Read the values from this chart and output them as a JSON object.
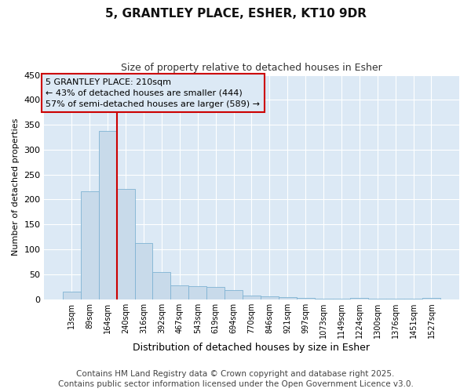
{
  "title": "5, GRANTLEY PLACE, ESHER, KT10 9DR",
  "subtitle": "Size of property relative to detached houses in Esher",
  "xlabel": "Distribution of detached houses by size in Esher",
  "ylabel": "Number of detached properties",
  "bar_color": "#c8daea",
  "bar_edge_color": "#7fb3d3",
  "plot_bg_color": "#dce9f5",
  "fig_bg_color": "#ffffff",
  "grid_color": "#ffffff",
  "categories": [
    "13sqm",
    "89sqm",
    "164sqm",
    "240sqm",
    "316sqm",
    "392sqm",
    "467sqm",
    "543sqm",
    "619sqm",
    "694sqm",
    "770sqm",
    "846sqm",
    "921sqm",
    "997sqm",
    "1073sqm",
    "1149sqm",
    "1224sqm",
    "1300sqm",
    "1376sqm",
    "1451sqm",
    "1527sqm"
  ],
  "values": [
    15,
    216,
    338,
    222,
    113,
    55,
    27,
    26,
    25,
    19,
    7,
    5,
    4,
    2,
    1,
    1,
    3,
    1,
    1,
    1,
    3
  ],
  "ylim": [
    0,
    450
  ],
  "yticks": [
    0,
    50,
    100,
    150,
    200,
    250,
    300,
    350,
    400,
    450
  ],
  "vline_color": "#cc0000",
  "annotation_text": "5 GRANTLEY PLACE: 210sqm\n← 43% of detached houses are smaller (444)\n57% of semi-detached houses are larger (589) →",
  "annotation_box_color": "#cc0000",
  "footer_text": "Contains HM Land Registry data © Crown copyright and database right 2025.\nContains public sector information licensed under the Open Government Licence v3.0.",
  "footer_fontsize": 7.5,
  "title_fontsize": 11,
  "subtitle_fontsize": 9
}
